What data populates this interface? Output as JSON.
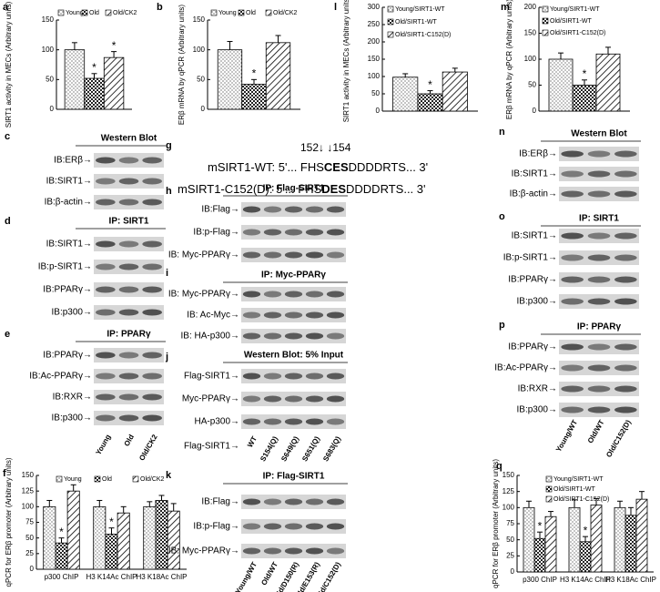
{
  "chart_data": [
    {
      "type": "bar",
      "letter": "a",
      "ylabel": "SIRT1 activity in MECs (Arbitrary units)",
      "ylim": [
        0,
        150
      ],
      "yticks": [
        0,
        50,
        100,
        150
      ],
      "series": [
        {
          "name": "Young",
          "pattern": "dots",
          "values": [
            100
          ],
          "errors": [
            12
          ],
          "significance": [
            null
          ]
        },
        {
          "name": "Old",
          "pattern": "cross",
          "values": [
            52
          ],
          "errors": [
            8
          ],
          "significance": [
            "*"
          ]
        },
        {
          "name": "Old/CK2",
          "pattern": "diagonal",
          "values": [
            87
          ],
          "errors": [
            10
          ],
          "significance": [
            "*"
          ]
        }
      ]
    },
    {
      "type": "bar",
      "letter": "b",
      "ylabel": "ERβ mRNA by qPCR (Arbitrary units)",
      "ylim": [
        0,
        150
      ],
      "yticks": [
        0,
        50,
        100,
        150
      ],
      "series": [
        {
          "name": "Young",
          "pattern": "dots",
          "values": [
            100
          ],
          "errors": [
            14
          ],
          "significance": [
            null
          ]
        },
        {
          "name": "Old",
          "pattern": "cross",
          "values": [
            42
          ],
          "errors": [
            8
          ],
          "significance": [
            "*"
          ]
        },
        {
          "name": "Old/CK2",
          "pattern": "diagonal",
          "values": [
            112
          ],
          "errors": [
            12
          ],
          "significance": [
            null
          ]
        }
      ]
    },
    {
      "type": "bar",
      "letter": "l",
      "ylabel": "SIRT1 activity in MECs (Arbitrary units)",
      "ylim": [
        0,
        300
      ],
      "yticks": [
        0,
        50,
        100,
        150,
        200,
        250,
        300
      ],
      "series": [
        {
          "name": "Young/SIRT1-WT",
          "pattern": "dots",
          "values": [
            98
          ],
          "errors": [
            10
          ],
          "significance": [
            null
          ]
        },
        {
          "name": "Old/SIRT1-WT",
          "pattern": "cross",
          "values": [
            50
          ],
          "errors": [
            9
          ],
          "significance": [
            "*"
          ]
        },
        {
          "name": "Old/SIRT1-C152(D)",
          "pattern": "diagonal",
          "values": [
            113
          ],
          "errors": [
            11
          ],
          "significance": [
            null
          ]
        }
      ]
    },
    {
      "type": "bar",
      "letter": "m",
      "ylabel": "ERβ mRNA by qPCR (Arbitrary units)",
      "ylim": [
        0,
        200
      ],
      "yticks": [
        0,
        50,
        100,
        150,
        200
      ],
      "series": [
        {
          "name": "Young/SIRT1-WT",
          "pattern": "dots",
          "values": [
            100
          ],
          "errors": [
            12
          ],
          "significance": [
            null
          ]
        },
        {
          "name": "Old/SIRT1-WT",
          "pattern": "cross",
          "values": [
            50
          ],
          "errors": [
            10
          ],
          "significance": [
            "*"
          ]
        },
        {
          "name": "Old/SIRT1-C152(D)",
          "pattern": "diagonal",
          "values": [
            110
          ],
          "errors": [
            13
          ],
          "significance": [
            null
          ]
        }
      ]
    },
    {
      "type": "bar",
      "letter": "f",
      "ylabel": "qPCR for ERβ promoter (Arbitrary units)",
      "ylim": [
        0,
        150
      ],
      "yticks": [
        0,
        25,
        50,
        75,
        100,
        125,
        150
      ],
      "categories": [
        "p300 ChIP",
        "H3 K14Ac ChIP",
        "H3 K18Ac ChIP"
      ],
      "series": [
        {
          "name": "Young",
          "pattern": "dots",
          "values": [
            100,
            100,
            100
          ],
          "errors": [
            10,
            10,
            8
          ],
          "significance": [
            null,
            null,
            null
          ]
        },
        {
          "name": "Old",
          "pattern": "cross",
          "values": [
            42,
            56,
            110
          ],
          "errors": [
            8,
            10,
            8
          ],
          "significance": [
            "*",
            "*",
            null
          ]
        },
        {
          "name": "Old/CK2",
          "pattern": "diagonal",
          "values": [
            125,
            90,
            93
          ],
          "errors": [
            10,
            10,
            12
          ],
          "significance": [
            null,
            null,
            null
          ]
        }
      ]
    },
    {
      "type": "bar",
      "letter": "q",
      "ylabel": "qPCR for ERβ promoter (Arbitrary units)",
      "ylim": [
        0,
        150
      ],
      "yticks": [
        0,
        25,
        50,
        75,
        100,
        125,
        150
      ],
      "categories": [
        "p300 ChIP",
        "H3 K14Ac ChIP",
        "H3 K18Ac ChIP"
      ],
      "series": [
        {
          "name": "Young/SIRT1-WT",
          "pattern": "dots",
          "values": [
            100,
            100,
            100
          ],
          "errors": [
            10,
            12,
            10
          ],
          "significance": [
            null,
            null,
            null
          ]
        },
        {
          "name": "Old/SIRT1-WT",
          "pattern": "cross",
          "values": [
            52,
            47,
            88
          ],
          "errors": [
            10,
            8,
            12
          ],
          "significance": [
            "*",
            "*",
            null
          ]
        },
        {
          "name": "Old/SIRT1-C152(D)",
          "pattern": "diagonal",
          "values": [
            86,
            104,
            113
          ],
          "errors": [
            8,
            10,
            12
          ],
          "significance": [
            null,
            null,
            null
          ]
        }
      ]
    }
  ],
  "blot_panels": [
    {
      "letter": "c",
      "title": "Western Blot",
      "rows": [
        "IB:ERβ→",
        "IB:SIRT1→",
        "IB:β-actin→"
      ]
    },
    {
      "letter": "d",
      "title": "IP: SIRT1",
      "rows": [
        "IB:SIRT1→",
        "IB:p-SIRT1→",
        "IB:PPARγ→",
        "IB:p300→"
      ]
    },
    {
      "letter": "e",
      "title": "IP: PPARγ",
      "rows": [
        "IB:PPARγ→",
        "IB:Ac-PPARγ→",
        "IB:RXR→",
        "IB:p300→"
      ],
      "lanes": [
        "Young",
        "Old",
        "Old/CK2"
      ]
    },
    {
      "letter": "h",
      "title": "IP: Flag-SIRT1",
      "rows": [
        "IB:Flag→",
        "IB:p-Flag→",
        "IB: Myc-PPARγ→"
      ]
    },
    {
      "letter": "i",
      "title": "IP: Myc-PPARγ",
      "rows": [
        "IB: Myc-PPARγ→",
        "IB: Ac-Myc→",
        "IB: HA-p300→"
      ]
    },
    {
      "letter": "j",
      "title": "Western Blot: 5% Input",
      "rows": [
        "Flag-SIRT1→",
        "Myc-PPARγ→",
        "HA-p300→"
      ],
      "lanes_label": "Flag-SIRT1→",
      "lanes": [
        "WT",
        "S154(Q)",
        "S649(Q)",
        "S651(Q)",
        "S683(Q)"
      ]
    },
    {
      "letter": "k",
      "title": "IP: Flag-SIRT1",
      "rows": [
        "IB:Flag→",
        "IB:p-Flag→",
        "IB: Myc-PPARγ→"
      ],
      "lanes": [
        "Young/WT",
        "Old/WT",
        "Old/D150(R)",
        "Old/E153(R)",
        "Old/C152(D)"
      ]
    },
    {
      "letter": "n",
      "title": "Western Blot",
      "rows": [
        "IB:ERβ→",
        "IB:SIRT1→",
        "IB:β-actin→"
      ]
    },
    {
      "letter": "o",
      "title": "IP: SIRT1",
      "rows": [
        "IB:SIRT1→",
        "IB:p-SIRT1→",
        "IB:PPARγ→",
        "IB:p300→"
      ]
    },
    {
      "letter": "p",
      "title": "IP: PPARγ",
      "rows": [
        "IB:PPARγ→",
        "IB:Ac-PPARγ→",
        "IB:RXR→",
        "IB:p300→"
      ],
      "lanes": [
        "Young/WT",
        "Old/WT",
        "Old/C152(D)"
      ]
    }
  ],
  "sequence_panel": {
    "letter": "g",
    "positions": "152↓  ↓154",
    "lines": [
      {
        "prefix": "mSIRT1-WT: 5'... FHS",
        "bold": "CES",
        "suffix": "DDDDRTS... 3'"
      },
      {
        "prefix": "mSIRT1-C152(D): 5'... FHS",
        "bold": "DES",
        "suffix": "DDDDRTS... 3'"
      }
    ]
  }
}
